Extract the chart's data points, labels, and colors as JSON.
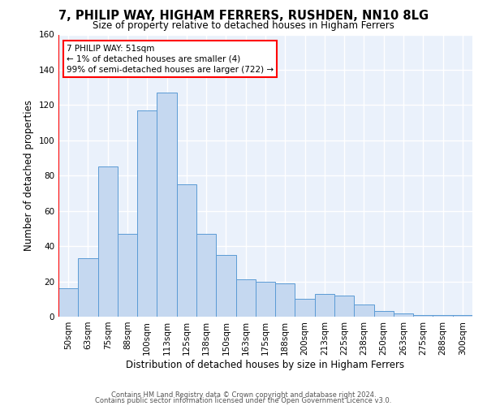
{
  "title": "7, PHILIP WAY, HIGHAM FERRERS, RUSHDEN, NN10 8LG",
  "subtitle": "Size of property relative to detached houses in Higham Ferrers",
  "xlabel": "Distribution of detached houses by size in Higham Ferrers",
  "ylabel": "Number of detached properties",
  "footer1": "Contains HM Land Registry data © Crown copyright and database right 2024.",
  "footer2": "Contains public sector information licensed under the Open Government Licence v3.0.",
  "categories": [
    "50sqm",
    "63sqm",
    "75sqm",
    "88sqm",
    "100sqm",
    "113sqm",
    "125sqm",
    "138sqm",
    "150sqm",
    "163sqm",
    "175sqm",
    "188sqm",
    "200sqm",
    "213sqm",
    "225sqm",
    "238sqm",
    "250sqm",
    "263sqm",
    "275sqm",
    "288sqm",
    "300sqm"
  ],
  "values": [
    16,
    33,
    85,
    47,
    117,
    127,
    75,
    47,
    35,
    21,
    20,
    19,
    10,
    13,
    12,
    7,
    3,
    2,
    1,
    1,
    1
  ],
  "bar_color": "#c5d8f0",
  "bar_edge_color": "#5b9bd5",
  "annotation_line1": "7 PHILIP WAY: 51sqm",
  "annotation_line2": "← 1% of detached houses are smaller (4)",
  "annotation_line3": "99% of semi-detached houses are larger (722) →",
  "ylim": [
    0,
    160
  ],
  "yticks": [
    0,
    20,
    40,
    60,
    80,
    100,
    120,
    140,
    160
  ],
  "bg_color": "#eaf1fb",
  "grid_color": "#ffffff",
  "title_fontsize": 10.5,
  "subtitle_fontsize": 8.5,
  "xlabel_fontsize": 8.5,
  "ylabel_fontsize": 8.5,
  "tick_fontsize": 7.5,
  "annotation_fontsize": 7.5,
  "footer_fontsize": 6.0
}
